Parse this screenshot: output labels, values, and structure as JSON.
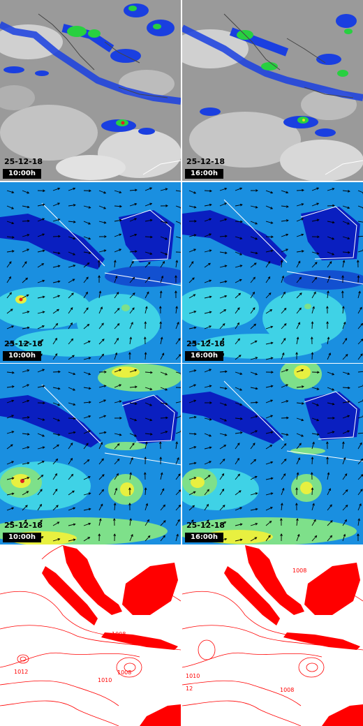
{
  "rows": [
    {
      "type": "satellite",
      "panels": [
        {
          "date": "25-12-18",
          "time": "10:00h"
        },
        {
          "date": "25-12-18",
          "time": "16:00h"
        }
      ]
    },
    {
      "type": "wind-low",
      "panels": [
        {
          "date": "25-12-18",
          "time": "10:00h"
        },
        {
          "date": "25-12-18",
          "time": "16:00h"
        }
      ]
    },
    {
      "type": "wind-high",
      "panels": [
        {
          "date": "25-12-18",
          "time": "10:00h"
        },
        {
          "date": "25-12-18",
          "time": "16:00h"
        }
      ]
    },
    {
      "type": "pressure",
      "panels": [
        {},
        {}
      ]
    }
  ],
  "isobar_labels": {
    "left": [
      "1008",
      "1012",
      "1010",
      "1008"
    ],
    "right": [
      "1008",
      "1010",
      "12",
      "1008"
    ]
  },
  "colors": {
    "wind_base": "#1a8fe0",
    "wind_dark": "#0a1fc0",
    "wind_light": "#3fd2e6",
    "wind_green": "#7ee08a",
    "wind_yellow": "#e8f040",
    "isobar": "#ff0000",
    "cloud_blue": "#1a3fe0",
    "cloud_green": "#28d040"
  }
}
